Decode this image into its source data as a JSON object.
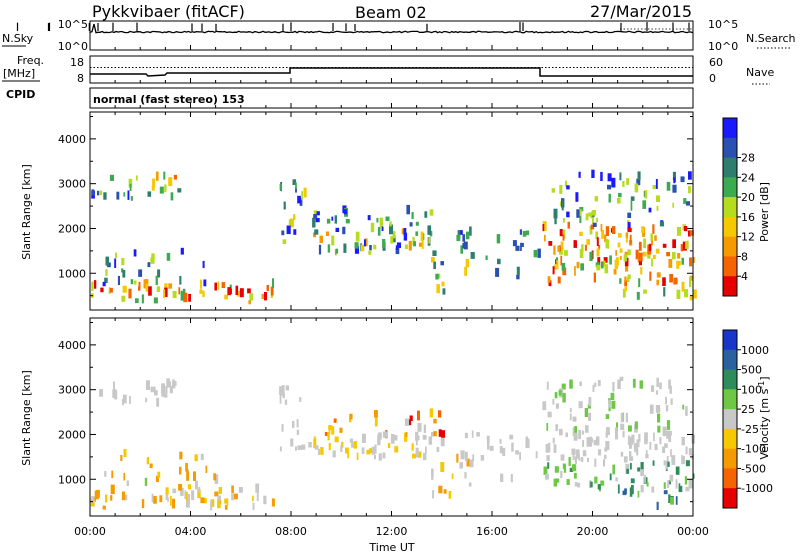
{
  "header": {
    "station": "Pykkvibaer (fitACF)",
    "beam": "Beam 02",
    "date": "27/Mar/2015"
  },
  "nsky_panel": {
    "left_label": "N.Sky",
    "right_label": "N.Search",
    "left_ticks": [
      "10^5",
      "10^0"
    ],
    "right_ticks": [
      "10^5",
      "10^0"
    ]
  },
  "freq_panel": {
    "left_label": "Freq.",
    "left_unit": "[MHz]",
    "right_label": "Nave",
    "left_ticks": [
      "18",
      "8"
    ],
    "right_ticks": [
      "60",
      "0"
    ]
  },
  "cpid_panel": {
    "label": "CPID",
    "value": "normal (fast stereo) 153"
  },
  "chart_data": [
    {
      "type": "heatmap",
      "panel": "power",
      "ylabel": "Slant Range [km]",
      "ylim": [
        180,
        4600
      ],
      "yticks": [
        "1000",
        "2000",
        "3000",
        "4000"
      ],
      "xlim_hours": [
        0,
        24
      ],
      "colorbar": {
        "label": "Power [dB]",
        "ticks": [
          "4",
          "8",
          "12",
          "16",
          "20",
          "24",
          "28"
        ],
        "colors": [
          "#1a1aff",
          "#2a50b0",
          "#2f7d6e",
          "#3caa50",
          "#b6dc1e",
          "#f5c800",
          "#f59b00",
          "#f56400",
          "#e60000"
        ]
      }
    },
    {
      "type": "heatmap",
      "panel": "velocity",
      "ylabel": "Slant Range [km]",
      "ylim": [
        180,
        4600
      ],
      "yticks": [
        "1000",
        "2000",
        "3000",
        "4000"
      ],
      "xlim_hours": [
        0,
        24
      ],
      "colorbar": {
        "label": "Velocity [m s",
        "label_sup": "-1",
        "label_close": "]",
        "ticks": [
          "1000",
          "500",
          "100",
          "25",
          "-25",
          "-100",
          "-500",
          "-1000"
        ],
        "colors": [
          "#1a36c8",
          "#2a62a0",
          "#2e8c5a",
          "#6ec846",
          "#c8c8c8",
          "#f5c800",
          "#f59b00",
          "#f56400",
          "#e60000"
        ]
      }
    }
  ],
  "time_axis": {
    "label": "Time UT",
    "ticks": [
      "00:00",
      "04:00",
      "08:00",
      "12:00",
      "16:00",
      "20:00",
      "00:00"
    ]
  }
}
